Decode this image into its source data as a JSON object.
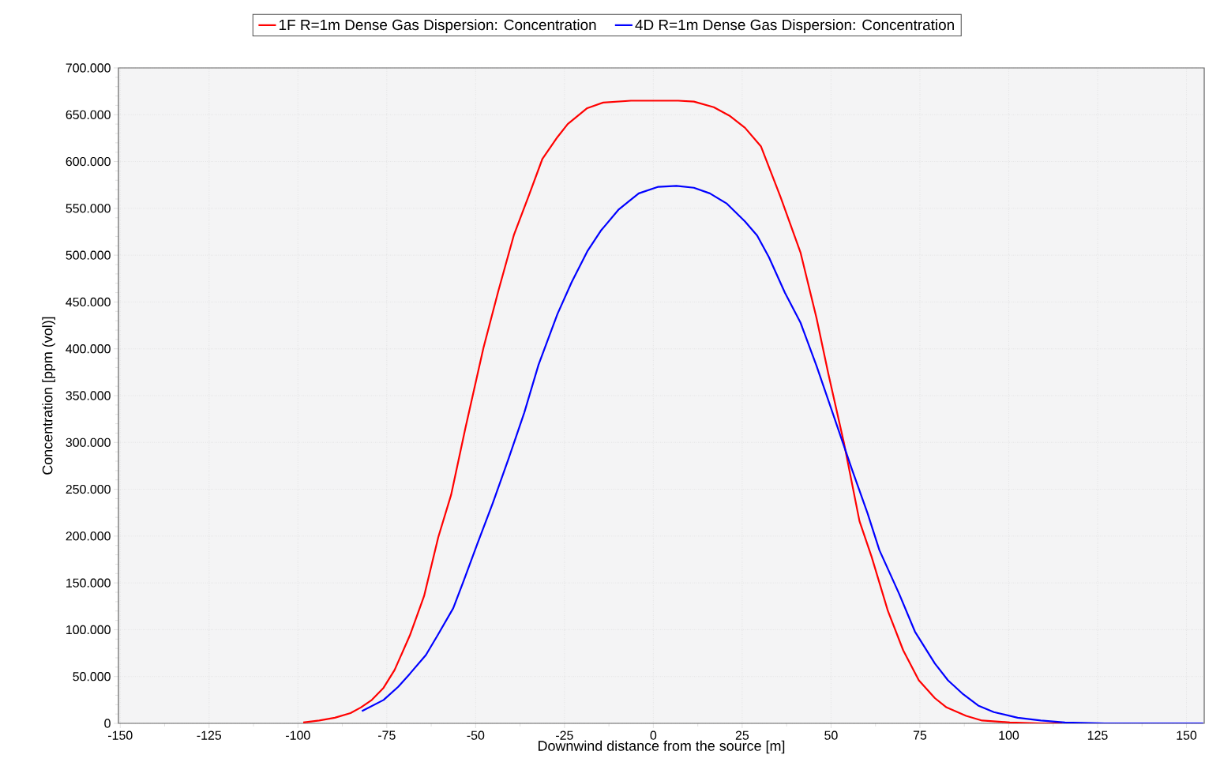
{
  "chart_data": {
    "type": "line",
    "xlabel": "Downwind distance from the source [m]",
    "ylabel": "Concentration [ppm (vol)]",
    "xlim": [
      -150.5,
      155
    ],
    "ylim": [
      0,
      700000
    ],
    "xticks": [
      -150,
      -125,
      -100,
      -75,
      -50,
      -25,
      0,
      25,
      50,
      75,
      100,
      125,
      150
    ],
    "yticks": [
      0,
      {
        "value": 50000,
        "label": "50.000"
      },
      {
        "value": 100000,
        "label": "100.000"
      },
      {
        "value": 150000,
        "label": "150.000"
      },
      {
        "value": 200000,
        "label": "200.000"
      },
      {
        "value": 250000,
        "label": "250.000"
      },
      {
        "value": 300000,
        "label": "300.000"
      },
      {
        "value": 350000,
        "label": "350.000"
      },
      {
        "value": 400000,
        "label": "400.000"
      },
      {
        "value": 450000,
        "label": "450.000"
      },
      {
        "value": 500000,
        "label": "500.000"
      },
      {
        "value": 550000,
        "label": "550.000"
      },
      {
        "value": 600000,
        "label": "600.000"
      },
      {
        "value": 650000,
        "label": "650.000"
      },
      {
        "value": 700000,
        "label": "700.000"
      }
    ],
    "grid": true,
    "legend": "top",
    "marker": "none",
    "line_style": "solid",
    "series": [
      {
        "name": "1F R=1m Dense Gas Dispersion: Concentration",
        "color": "#ff0000",
        "x": [
          -98.5,
          -94,
          -89.6,
          -85.2,
          -82.3,
          -79.2,
          -75.9,
          -72.8,
          -68.5,
          -64.5,
          -60.5,
          -56.9,
          -52.9,
          -47.8,
          -43.6,
          -39.2,
          -35.2,
          -31.2,
          -27,
          -24.1,
          -18.6,
          -14.1,
          -6.3,
          7,
          11.4,
          17,
          21.4,
          25.8,
          30.3,
          35.8,
          41.4,
          45.9,
          49.2,
          53.6,
          58,
          61.4,
          66,
          70.3,
          74.7,
          79.2,
          82.5,
          88,
          92.5,
          100.3,
          109,
          115
        ],
        "values": [
          1000,
          3000,
          6000,
          11000,
          17000,
          25000,
          38000,
          57000,
          94000,
          136000,
          199000,
          244000,
          315000,
          401000,
          462000,
          522000,
          562000,
          603000,
          626000,
          640000,
          657000,
          663000,
          665000,
          665000,
          664000,
          658000,
          649000,
          636000,
          616000,
          562000,
          503000,
          433000,
          374000,
          300000,
          216000,
          178000,
          120000,
          78000,
          46000,
          27000,
          17000,
          8000,
          3000,
          1000,
          0,
          0
        ]
      },
      {
        "name": "4D R=1m Dense Gas Dispersion: Concentration",
        "color": "#0000ff",
        "x": [
          -82,
          -75.9,
          -71.8,
          -68.5,
          -64,
          -60.7,
          -56.3,
          -53.4,
          -49.6,
          -45.2,
          -40.7,
          -36.3,
          -32.3,
          -27,
          -23,
          -18.6,
          -14.8,
          -9.7,
          -4.1,
          1.4,
          6.5,
          11.4,
          15.9,
          20.7,
          25.8,
          29.2,
          32.5,
          37,
          41.4,
          45.9,
          51.4,
          55.9,
          60.3,
          63.6,
          69.2,
          73.6,
          79.2,
          82.9,
          86.9,
          91.4,
          95.8,
          102.5,
          109,
          115.8,
          127,
          154.7
        ],
        "values": [
          13000,
          25000,
          39000,
          53000,
          73000,
          94000,
          123000,
          152000,
          191000,
          235000,
          283000,
          332000,
          383000,
          437000,
          471000,
          504000,
          526000,
          549000,
          566000,
          573000,
          574000,
          572000,
          566000,
          555000,
          536000,
          521000,
          498000,
          460000,
          428000,
          382000,
          321000,
          271000,
          224000,
          185000,
          138000,
          98000,
          64000,
          46000,
          32000,
          19000,
          12000,
          6000,
          3000,
          1000,
          0,
          0
        ]
      }
    ]
  }
}
